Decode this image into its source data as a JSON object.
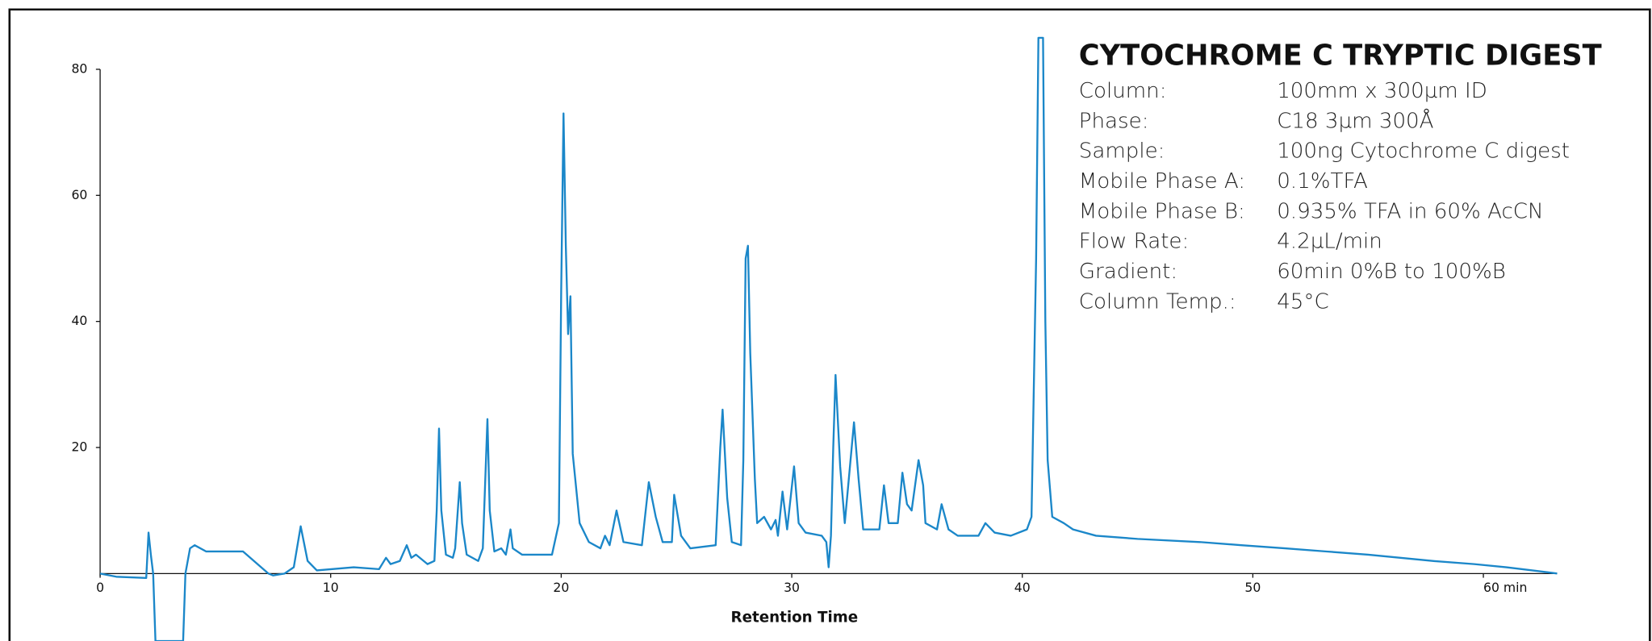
{
  "chart_data": {
    "type": "line",
    "x_label": "Retention Time",
    "color": "#1b87c9",
    "xlim": [
      0,
      63.2
    ],
    "ylim": [
      -10.7,
      85
    ],
    "xticks": [
      0,
      10,
      20,
      30,
      40,
      50,
      {
        "value": 60,
        "label": "60 min"
      }
    ],
    "yticks": [
      20,
      40,
      60,
      80
    ],
    "x": [
      0,
      0.7,
      2.0,
      2.1,
      2.2,
      2.3,
      2.4,
      3.6,
      3.7,
      3.9,
      4.1,
      4.6,
      6.2,
      7.3,
      7.5,
      8.0,
      8.4,
      8.7,
      9.0,
      9.4,
      11.0,
      12.1,
      12.4,
      12.6,
      13.0,
      13.3,
      13.5,
      13.7,
      14.2,
      14.5,
      14.6,
      14.7,
      14.8,
      15.0,
      15.3,
      15.4,
      15.6,
      15.7,
      15.9,
      16.4,
      16.6,
      16.8,
      16.9,
      17.1,
      17.4,
      17.6,
      17.8,
      17.9,
      18.3,
      19.6,
      19.9,
      20.0,
      20.1,
      20.2,
      20.3,
      20.4,
      20.5,
      20.8,
      21.2,
      21.7,
      21.9,
      22.1,
      22.4,
      22.7,
      23.5,
      23.8,
      24.1,
      24.4,
      24.8,
      24.9,
      25.2,
      25.6,
      26.7,
      26.9,
      27.0,
      27.2,
      27.4,
      27.8,
      27.9,
      28.0,
      28.1,
      28.2,
      28.4,
      28.5,
      28.8,
      29.1,
      29.3,
      29.4,
      29.6,
      29.8,
      30.1,
      30.3,
      30.6,
      31.3,
      31.5,
      31.6,
      31.7,
      31.8,
      31.9,
      32.1,
      32.3,
      32.6,
      32.7,
      32.9,
      33.1,
      33.8,
      34.0,
      34.2,
      34.6,
      34.8,
      35.0,
      35.2,
      35.5,
      35.7,
      35.8,
      36.3,
      36.5,
      36.8,
      37.2,
      38.1,
      38.4,
      38.8,
      39.5,
      40.2,
      40.4,
      40.6,
      40.7,
      40.9,
      41.0,
      41.1,
      41.3,
      41.8,
      42.2,
      43.2,
      45.0,
      47.7,
      49.5,
      51.4,
      53.2,
      55.0,
      57.8,
      59.6,
      61.0,
      62.8,
      63.2
    ],
    "values": [
      0,
      -0.5,
      -0.7,
      6.5,
      3,
      0,
      -10.7,
      -10.7,
      0,
      4,
      4.5,
      3.5,
      3.5,
      0,
      -0.3,
      0,
      1,
      7.5,
      2,
      0.5,
      1,
      0.7,
      2.5,
      1.5,
      2,
      4.5,
      2.5,
      3,
      1.5,
      2,
      10,
      23,
      10,
      3,
      2.5,
      4,
      14.5,
      8,
      3,
      2,
      4,
      24.5,
      10,
      3.5,
      4,
      3,
      7,
      4,
      3,
      3,
      8,
      45,
      73,
      52,
      38,
      44,
      19,
      8,
      5,
      4,
      6,
      4.5,
      10,
      5,
      4.5,
      14.5,
      9,
      5,
      5,
      12.5,
      6,
      4,
      4.5,
      20,
      26,
      12,
      5,
      4.5,
      18,
      50,
      52,
      35,
      15,
      8,
      9,
      7,
      8.5,
      6,
      13,
      7,
      17,
      8,
      6.5,
      6,
      5,
      1,
      6,
      20,
      31.5,
      17,
      8,
      20,
      24,
      15,
      7,
      7,
      14,
      8,
      8,
      16,
      11,
      10,
      18,
      14,
      8,
      7,
      11,
      7,
      6,
      6,
      8,
      6.5,
      6,
      7,
      9,
      50,
      85,
      85,
      40,
      18,
      9,
      8,
      7,
      6,
      5.5,
      5,
      4.5,
      4,
      3.5,
      3,
      2,
      1.5,
      1,
      0.2,
      0
    ],
    "annotation": {
      "title": "CYTOCHROME C TRYPTIC DIGEST",
      "rows": [
        [
          "Column:",
          "100mm x 300µm ID"
        ],
        [
          "Phase:",
          "C18 3µm 300Å"
        ],
        [
          "Sample:",
          "100ng Cytochrome C digest"
        ],
        [
          "Mobile Phase A:",
          "0.1%TFA"
        ],
        [
          "Mobile Phase B:",
          "0.935% TFA in 60% AcCN"
        ],
        [
          "Flow Rate:",
          "4.2µL/min"
        ],
        [
          "Gradient:",
          "60min 0%B to 100%B"
        ],
        [
          "Column Temp.:",
          "45°C"
        ]
      ]
    }
  }
}
